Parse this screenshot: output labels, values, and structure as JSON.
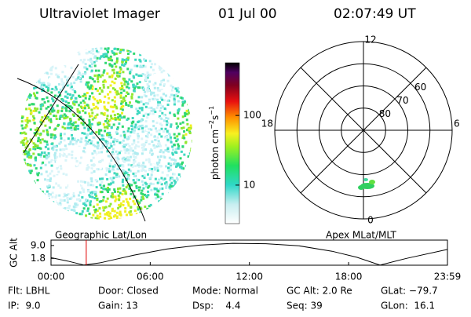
{
  "header": {
    "instrument": "Ultraviolet Imager",
    "date": "01 Jul 00",
    "time": "02:07:49 UT"
  },
  "image": {
    "caption": "Geographic Lat/Lon"
  },
  "colorbar": {
    "label": "photon cm",
    "label_exp1": "−2",
    "label_mid": "s",
    "label_exp2": "−1",
    "lim": [
      2.8,
      570
    ],
    "log": true,
    "ticks": [
      10,
      100
    ]
  },
  "polar": {
    "caption": "Apex MLat/MLT",
    "lat_lim": [
      50,
      90
    ],
    "lat_rings": [
      80,
      70,
      60
    ],
    "mlt_labels": [
      12,
      18,
      6,
      0
    ]
  },
  "altitude_plot": {
    "ylabel": "GC Alt",
    "ylim": [
      -2,
      12
    ],
    "yticks": [
      {
        "value": 9,
        "label": "9.0"
      },
      {
        "value": 1.8,
        "label": "1.8"
      }
    ],
    "xlim": [
      0,
      23.98
    ],
    "xticks": [
      {
        "value": 0,
        "label": "00:00"
      },
      {
        "value": 6,
        "label": "06:00"
      },
      {
        "value": 12,
        "label": "12:00"
      },
      {
        "value": 18,
        "label": "18:00"
      },
      {
        "value": 23.98,
        "label": "23:59"
      }
    ],
    "hours": [
      0,
      1,
      2,
      3,
      5,
      7,
      9,
      11,
      13,
      15,
      17,
      18.5,
      19.9,
      21.5,
      23.98
    ],
    "values": [
      2.2,
      0.3,
      -1.9,
      -0.6,
      3.6,
      7.0,
      9.2,
      10.2,
      10.0,
      8.8,
      5.8,
      2.4,
      -1.9,
      1.8,
      6.8
    ],
    "marker_hour": 2.13
  },
  "footer": {
    "rows": [
      [
        "Flt: LBHL",
        "Door: Closed",
        "Mode: Normal",
        "GC Alt: 2.0 Re",
        "GLat: −79.7"
      ],
      [
        "IP:  9.0",
        "Gain: 13",
        "Dsp:    4.4",
        "Seq: 39",
        "GLon:  16.1"
      ]
    ]
  }
}
